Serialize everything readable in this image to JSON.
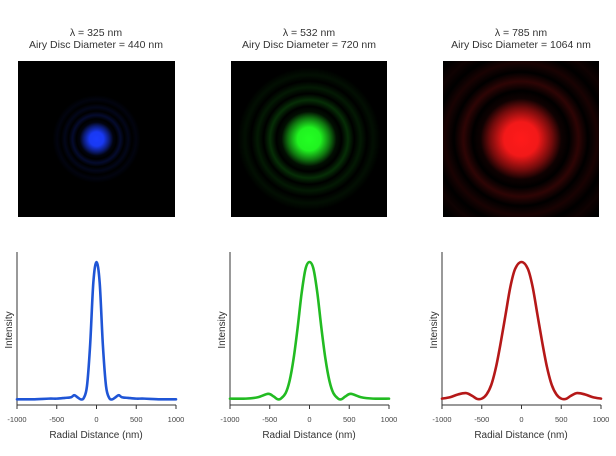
{
  "chart_data": [
    {
      "type": "line",
      "panel": "blue",
      "title_line1": "λ = 325 nm",
      "title_line2": "Airy Disc Diameter = 440 nm",
      "xlabel": "Radial Distance (nm)",
      "ylabel": "Intensity",
      "xlim": [
        -1000,
        1000
      ],
      "ylim": [
        0,
        1.0
      ],
      "x_ticks": [
        "-1000",
        "-500",
        "0",
        "500",
        "1000"
      ],
      "grid": false,
      "color": "#1f55d6",
      "glow_color": "#1a3cff",
      "disc_diameter_nm": 440,
      "series": [
        {
          "x": [
            -1000,
            -800,
            -600,
            -500,
            -400,
            -320,
            -280,
            -240,
            -200,
            -160,
            -120,
            -80,
            -40,
            0,
            40,
            80,
            120,
            160,
            200,
            240,
            280,
            320,
            400,
            500,
            600,
            800,
            1000
          ],
          "values": [
            0.005,
            0.005,
            0.01,
            0.01,
            0.015,
            0.02,
            0.035,
            0.02,
            0.005,
            0.015,
            0.1,
            0.4,
            0.85,
            1.0,
            0.85,
            0.4,
            0.1,
            0.015,
            0.005,
            0.02,
            0.035,
            0.02,
            0.015,
            0.01,
            0.01,
            0.005,
            0.005
          ]
        }
      ]
    },
    {
      "type": "line",
      "panel": "green",
      "title_line1": "λ = 532 nm",
      "title_line2": "Airy Disc Diameter = 720 nm",
      "xlabel": "Radial Distance (nm)",
      "ylabel": "Intensity",
      "xlim": [
        -1000,
        1000
      ],
      "ylim": [
        0,
        1.0
      ],
      "x_ticks": [
        "-1000",
        "-500",
        "0",
        "500",
        "1000"
      ],
      "grid": false,
      "color": "#22bb22",
      "glow_color": "#22ff22",
      "disc_diameter_nm": 720,
      "series": [
        {
          "x": [
            -1000,
            -800,
            -650,
            -520,
            -450,
            -400,
            -360,
            -300,
            -250,
            -200,
            -150,
            -100,
            -50,
            0,
            50,
            100,
            150,
            200,
            250,
            300,
            360,
            400,
            450,
            520,
            650,
            800,
            1000
          ],
          "values": [
            0.01,
            0.01,
            0.02,
            0.045,
            0.025,
            0.005,
            0.01,
            0.05,
            0.14,
            0.3,
            0.52,
            0.77,
            0.95,
            1.0,
            0.95,
            0.77,
            0.52,
            0.3,
            0.14,
            0.05,
            0.01,
            0.005,
            0.025,
            0.045,
            0.02,
            0.01,
            0.01
          ]
        }
      ]
    },
    {
      "type": "line",
      "panel": "red",
      "title_line1": "λ = 785 nm",
      "title_line2": "Airy Disc Diameter = 1064 nm",
      "xlabel": "Radial Distance (nm)",
      "ylabel": "Intensity",
      "xlim": [
        -1000,
        1000
      ],
      "ylim": [
        0,
        1.0
      ],
      "x_ticks": [
        "-1000",
        "-500",
        "0",
        "500",
        "1000"
      ],
      "grid": false,
      "color": "#b51818",
      "glow_color": "#ff1a1a",
      "disc_diameter_nm": 1064,
      "series": [
        {
          "x": [
            -1000,
            -900,
            -800,
            -700,
            -620,
            -560,
            -500,
            -440,
            -380,
            -320,
            -260,
            -200,
            -140,
            -80,
            0,
            80,
            140,
            200,
            260,
            320,
            380,
            440,
            500,
            560,
            620,
            700,
            800,
            900,
            1000
          ],
          "values": [
            0.01,
            0.02,
            0.04,
            0.05,
            0.03,
            0.008,
            0.01,
            0.04,
            0.11,
            0.24,
            0.42,
            0.62,
            0.82,
            0.95,
            1.0,
            0.95,
            0.82,
            0.62,
            0.42,
            0.24,
            0.11,
            0.04,
            0.01,
            0.008,
            0.03,
            0.05,
            0.04,
            0.02,
            0.01
          ]
        }
      ]
    }
  ]
}
